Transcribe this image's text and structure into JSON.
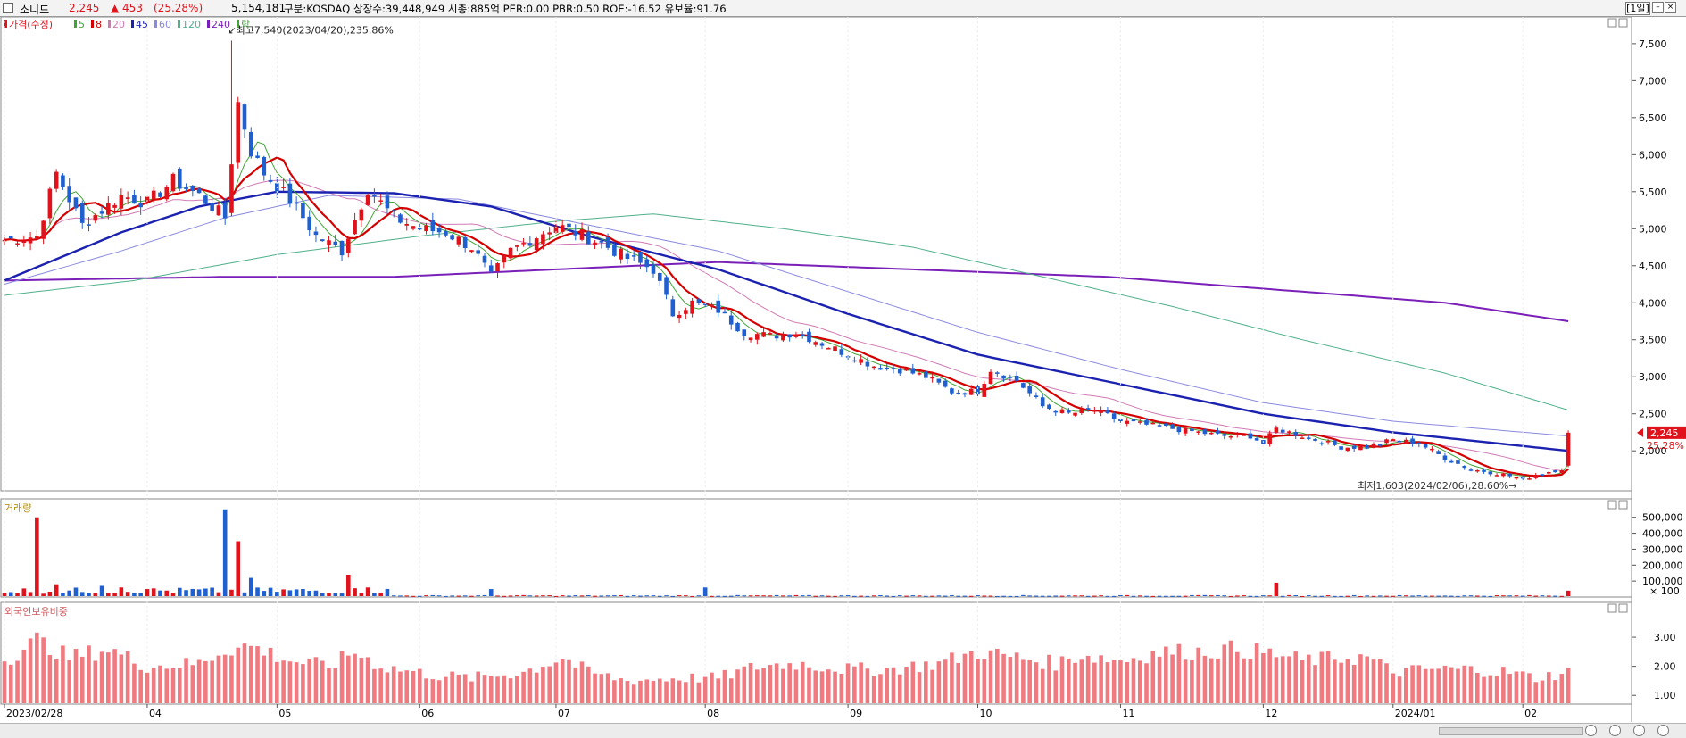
{
  "header": {
    "name": "소니드",
    "price": "2,245",
    "change": "▲ 453",
    "change_pct": "(25.28%)",
    "volume": "5,154,181",
    "info": "구분:KOSDAQ 상장수:39,448,949 시총:885억 PER:0.00 PBR:0.50 ROE:-16.52 유보율:91.76",
    "period": "[1일]"
  },
  "colors": {
    "up": "#e0121b",
    "down": "#1f5fd0",
    "ma5": "#3fa535",
    "ma8": "#d40000",
    "ma20": "#d07ab4",
    "ma45": "#1c22b0",
    "ma60": "#8a8ae0",
    "ma120": "#4fb08a",
    "ma240": "#7a1fb8",
    "foreign": "#f07a80"
  },
  "chart_data": [
    {
      "type": "candlestick",
      "panel": "price",
      "legend": [
        {
          "label": "가격(수정)",
          "color": "#e0121b"
        },
        {
          "label": "5",
          "color": "#3fa535"
        },
        {
          "label": "8",
          "color": "#d40000"
        },
        {
          "label": "20",
          "color": "#d07ab4"
        },
        {
          "label": "45",
          "color": "#1c22b0"
        },
        {
          "label": "60",
          "color": "#8a8ae0"
        },
        {
          "label": "120",
          "color": "#4fb08a"
        },
        {
          "label": "240",
          "color": "#7a1fb8"
        },
        {
          "label": "락",
          "color": "#3fa535"
        }
      ],
      "y_ticks": [
        "7,500",
        "7,000",
        "6,500",
        "6,000",
        "5,500",
        "5,000",
        "4,500",
        "4,000",
        "3,500",
        "3,000",
        "2,500",
        "2,000"
      ],
      "y_values": [
        7500,
        7000,
        6500,
        6000,
        5500,
        5000,
        4500,
        4000,
        3500,
        3000,
        2500,
        2000
      ],
      "ylim": [
        1460,
        7860
      ],
      "x_ticks": [
        "2023/02/28",
        "04",
        "05",
        "06",
        "07",
        "08",
        "09",
        "10",
        "11",
        "12",
        "2024/01",
        "02"
      ],
      "x_tick_index": [
        0,
        22,
        42,
        64,
        85,
        108,
        130,
        150,
        172,
        194,
        214,
        234
      ],
      "bars": 242,
      "annotation_high": "최고7,540(2023/04/20),235.86%",
      "annotation_low": "최저1,603(2024/02/06),28.60%",
      "high_value": 7540,
      "low_value": 1603,
      "last_price": "2,245",
      "last_pct": "25.28%",
      "last_value": 2245,
      "anchors": [
        [
          0,
          4850
        ],
        [
          5,
          4900
        ],
        [
          8,
          5750
        ],
        [
          12,
          5050
        ],
        [
          18,
          5450
        ],
        [
          22,
          5350
        ],
        [
          26,
          5650
        ],
        [
          30,
          5450
        ],
        [
          34,
          5150
        ],
        [
          36,
          6700
        ],
        [
          38,
          6050
        ],
        [
          40,
          5750
        ],
        [
          44,
          5400
        ],
        [
          48,
          4900
        ],
        [
          52,
          4700
        ],
        [
          56,
          5550
        ],
        [
          60,
          5150
        ],
        [
          64,
          5000
        ],
        [
          68,
          4950
        ],
        [
          72,
          4750
        ],
        [
          75,
          4350
        ],
        [
          78,
          4700
        ],
        [
          82,
          4900
        ],
        [
          85,
          5050
        ],
        [
          88,
          4950
        ],
        [
          92,
          4800
        ],
        [
          96,
          4600
        ],
        [
          100,
          4450
        ],
        [
          103,
          3850
        ],
        [
          106,
          4000
        ],
        [
          110,
          3900
        ],
        [
          114,
          3600
        ],
        [
          118,
          3550
        ],
        [
          122,
          3600
        ],
        [
          126,
          3450
        ],
        [
          130,
          3300
        ],
        [
          134,
          3150
        ],
        [
          138,
          3100
        ],
        [
          142,
          3000
        ],
        [
          146,
          2800
        ],
        [
          150,
          2800
        ],
        [
          152,
          3100
        ],
        [
          156,
          2950
        ],
        [
          160,
          2600
        ],
        [
          164,
          2500
        ],
        [
          168,
          2550
        ],
        [
          172,
          2400
        ],
        [
          176,
          2350
        ],
        [
          180,
          2300
        ],
        [
          184,
          2250
        ],
        [
          188,
          2200
        ],
        [
          192,
          2200
        ],
        [
          194,
          2100
        ],
        [
          196,
          2300
        ],
        [
          198,
          2250
        ],
        [
          202,
          2150
        ],
        [
          206,
          2050
        ],
        [
          210,
          2050
        ],
        [
          214,
          2150
        ],
        [
          218,
          2100
        ],
        [
          222,
          1900
        ],
        [
          226,
          1750
        ],
        [
          230,
          1700
        ],
        [
          234,
          1620
        ],
        [
          236,
          1680
        ],
        [
          240,
          1760
        ],
        [
          241,
          2245
        ]
      ],
      "ma_anchors": {
        "ma45": [
          [
            0,
            4300
          ],
          [
            18,
            4950
          ],
          [
            30,
            5300
          ],
          [
            42,
            5500
          ],
          [
            60,
            5480
          ],
          [
            75,
            5300
          ],
          [
            90,
            4900
          ],
          [
            110,
            4450
          ],
          [
            130,
            3850
          ],
          [
            150,
            3300
          ],
          [
            172,
            2900
          ],
          [
            194,
            2500
          ],
          [
            214,
            2250
          ],
          [
            241,
            2000
          ]
        ],
        "ma60": [
          [
            0,
            4250
          ],
          [
            18,
            4700
          ],
          [
            34,
            5150
          ],
          [
            50,
            5450
          ],
          [
            70,
            5400
          ],
          [
            90,
            5050
          ],
          [
            110,
            4700
          ],
          [
            130,
            4150
          ],
          [
            150,
            3600
          ],
          [
            172,
            3100
          ],
          [
            194,
            2650
          ],
          [
            214,
            2400
          ],
          [
            241,
            2200
          ]
        ],
        "ma120": [
          [
            0,
            4100
          ],
          [
            20,
            4300
          ],
          [
            42,
            4650
          ],
          [
            64,
            4900
          ],
          [
            85,
            5100
          ],
          [
            100,
            5200
          ],
          [
            120,
            5000
          ],
          [
            140,
            4750
          ],
          [
            160,
            4350
          ],
          [
            180,
            3950
          ],
          [
            200,
            3500
          ],
          [
            222,
            3050
          ],
          [
            241,
            2550
          ]
        ],
        "ma240": [
          [
            0,
            4300
          ],
          [
            34,
            4350
          ],
          [
            60,
            4350
          ],
          [
            85,
            4450
          ],
          [
            110,
            4550
          ],
          [
            140,
            4450
          ],
          [
            170,
            4350
          ],
          [
            200,
            4150
          ],
          [
            222,
            4000
          ],
          [
            241,
            3750
          ]
        ]
      }
    },
    {
      "type": "bar",
      "panel": "volume",
      "title": "거래량",
      "y_ticks": [
        "500,000",
        "400,000",
        "300,000",
        "200,000",
        "100,000",
        "× 100"
      ],
      "y_values": [
        500000,
        400000,
        300000,
        200000,
        100000
      ],
      "ylim": [
        0,
        560000
      ],
      "spikes": [
        [
          5,
          500000
        ],
        [
          8,
          80000
        ],
        [
          15,
          70000
        ],
        [
          18,
          60000
        ],
        [
          22,
          50000
        ],
        [
          34,
          550000
        ],
        [
          36,
          350000
        ],
        [
          38,
          120000
        ],
        [
          53,
          140000
        ],
        [
          56,
          60000
        ],
        [
          75,
          50000
        ],
        [
          108,
          60000
        ],
        [
          196,
          90000
        ],
        [
          241,
          40000
        ]
      ],
      "base_value": 6000
    },
    {
      "type": "bar",
      "panel": "foreign_holding",
      "title": "외국인보유비중",
      "y_ticks": [
        "3.00",
        "2.00",
        "1.00"
      ],
      "y_values": [
        3.0,
        2.0,
        1.0
      ],
      "ylim": [
        0.7,
        4.2
      ],
      "anchors": [
        [
          0,
          2.2
        ],
        [
          5,
          2.9
        ],
        [
          10,
          2.3
        ],
        [
          16,
          2.6
        ],
        [
          22,
          2.0
        ],
        [
          30,
          2.1
        ],
        [
          34,
          2.6
        ],
        [
          38,
          2.7
        ],
        [
          44,
          2.2
        ],
        [
          50,
          2.0
        ],
        [
          54,
          2.5
        ],
        [
          58,
          2.0
        ],
        [
          66,
          1.7
        ],
        [
          72,
          1.6
        ],
        [
          80,
          1.8
        ],
        [
          86,
          2.3
        ],
        [
          90,
          1.8
        ],
        [
          96,
          1.5
        ],
        [
          104,
          1.6
        ],
        [
          110,
          1.6
        ],
        [
          116,
          2.0
        ],
        [
          122,
          2.1
        ],
        [
          130,
          1.9
        ],
        [
          136,
          1.9
        ],
        [
          144,
          2.1
        ],
        [
          150,
          2.5
        ],
        [
          156,
          2.3
        ],
        [
          162,
          2.1
        ],
        [
          166,
          2.4
        ],
        [
          172,
          2.2
        ],
        [
          178,
          2.5
        ],
        [
          184,
          2.5
        ],
        [
          190,
          2.6
        ],
        [
          196,
          2.4
        ],
        [
          200,
          2.2
        ],
        [
          206,
          2.3
        ],
        [
          210,
          2.3
        ],
        [
          214,
          1.8
        ],
        [
          220,
          1.9
        ],
        [
          226,
          1.9
        ],
        [
          232,
          1.8
        ],
        [
          236,
          1.6
        ],
        [
          241,
          1.8
        ]
      ]
    }
  ],
  "footer": {
    "scroll": "scroll-bar",
    "zoom": [
      "zoom-in",
      "zoom-out",
      "zoom-reset",
      "zoom-fit"
    ]
  }
}
